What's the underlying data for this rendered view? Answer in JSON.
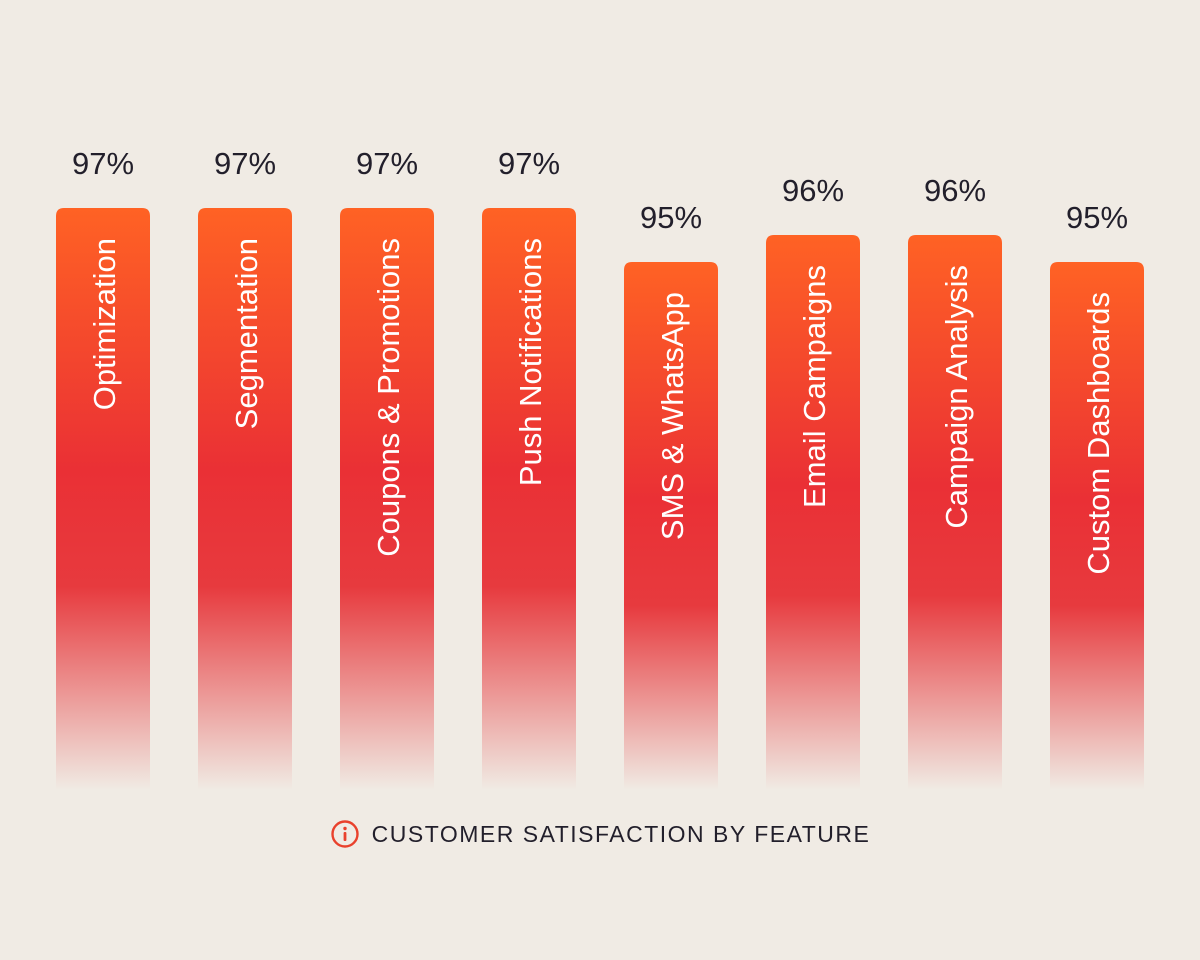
{
  "chart_data": {
    "type": "bar",
    "title": "CUSTOMER SATISFACTION BY FEATURE",
    "categories": [
      "Optimization",
      "Segmentation",
      "Coupons & Promotions",
      "Push Notifications",
      "SMS & WhatsApp",
      "Email Campaigns",
      "Campaign Analysis",
      "Custom Dashboards"
    ],
    "values": [
      97,
      97,
      97,
      97,
      95,
      96,
      96,
      95
    ],
    "value_labels": [
      "97%",
      "97%",
      "97%",
      "97%",
      "95%",
      "96%",
      "96%",
      "95%"
    ],
    "unit": "%",
    "ylim": [
      90,
      97
    ],
    "grid": false,
    "legend": "none",
    "colors": {
      "bar_top": "#ff6224",
      "bar_mid": "#ea3035",
      "bar_fade": "#f0ebe4",
      "label": "#221f2b",
      "bar_text": "#ffffff",
      "icon": "#e9412c"
    }
  },
  "caption": {
    "icon": "info-icon",
    "text": "CUSTOMER SATISFACTION BY FEATURE"
  }
}
